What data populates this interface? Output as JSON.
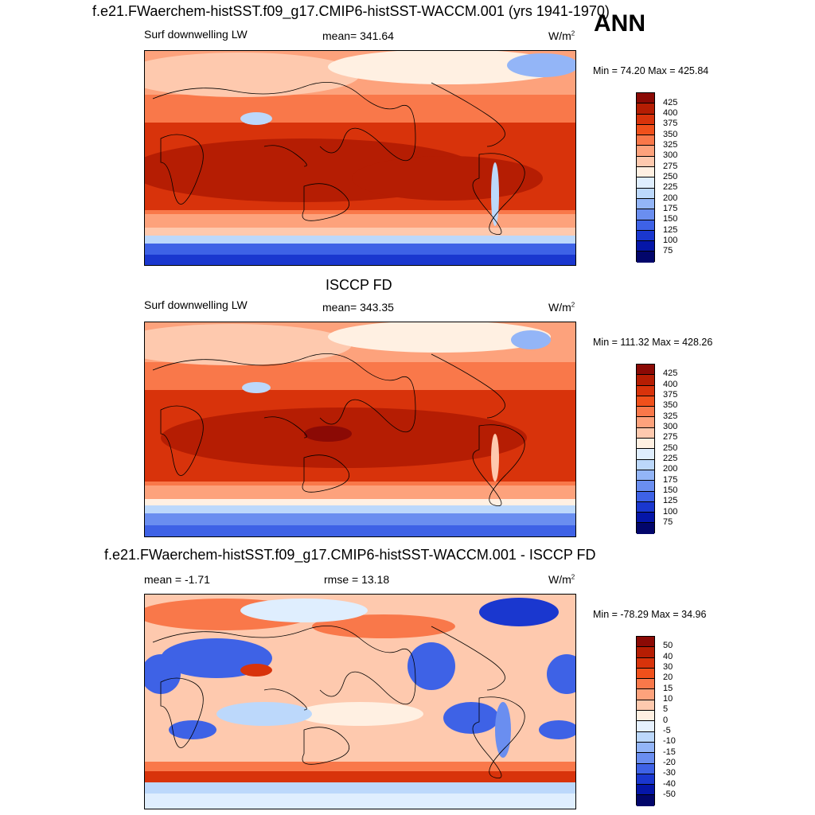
{
  "header": {
    "title": "f.e21.FWaerchem-histSST.f09_g17.CMIP6-histSST-WACCM.001 (yrs 1941-1970)",
    "season": "ANN"
  },
  "panels": [
    {
      "title": "",
      "left_label": "Surf downwelling LW",
      "center_label": "mean= 341.64",
      "units": "W/m",
      "units_sup": "2",
      "minmax": "Min =  74.20 Max = 425.84",
      "levels": [
        "425",
        "400",
        "375",
        "350",
        "325",
        "300",
        "275",
        "250",
        "225",
        "200",
        "175",
        "150",
        "125",
        "100",
        "75"
      ]
    },
    {
      "title": "ISCCP FD",
      "left_label": "Surf downwelling LW",
      "center_label": "mean= 343.35",
      "units": "W/m",
      "units_sup": "2",
      "minmax": "Min = 111.32 Max = 428.26",
      "levels": [
        "425",
        "400",
        "375",
        "350",
        "325",
        "300",
        "275",
        "250",
        "225",
        "200",
        "175",
        "150",
        "125",
        "100",
        "75"
      ]
    },
    {
      "title": "f.e21.FWaerchem-histSST.f09_g17.CMIP6-histSST-WACCM.001 - ISCCP FD",
      "left_label": "mean =  -1.71",
      "center_label": "rmse =  13.18",
      "units": "W/m",
      "units_sup": "2",
      "minmax": "Min = -78.29 Max =  34.96",
      "levels": [
        "50",
        "40",
        "30",
        "20",
        "15",
        "10",
        "5",
        "0",
        "-5",
        "-10",
        "-15",
        "-20",
        "-30",
        "-40",
        "-50"
      ]
    }
  ],
  "colors": {
    "abs_scale": [
      "#8b0a05",
      "#b51d03",
      "#d8330b",
      "#f0501b",
      "#f9784a",
      "#fda27c",
      "#fec9ae",
      "#fff0e2",
      "#dfeefe",
      "#bcd8fb",
      "#93b5f7",
      "#6a8ef0",
      "#3e62e6",
      "#1a37cf",
      "#0516a8",
      "#02066b"
    ],
    "diff_scale": [
      "#8b0a05",
      "#b51d03",
      "#d8330b",
      "#f0501b",
      "#f9784a",
      "#fda27c",
      "#fec9ae",
      "#fff0e2",
      "#e6f1fe",
      "#bcd8fb",
      "#93b5f7",
      "#6a8ef0",
      "#3e62e6",
      "#1a37cf",
      "#0516a8",
      "#02066b"
    ]
  }
}
